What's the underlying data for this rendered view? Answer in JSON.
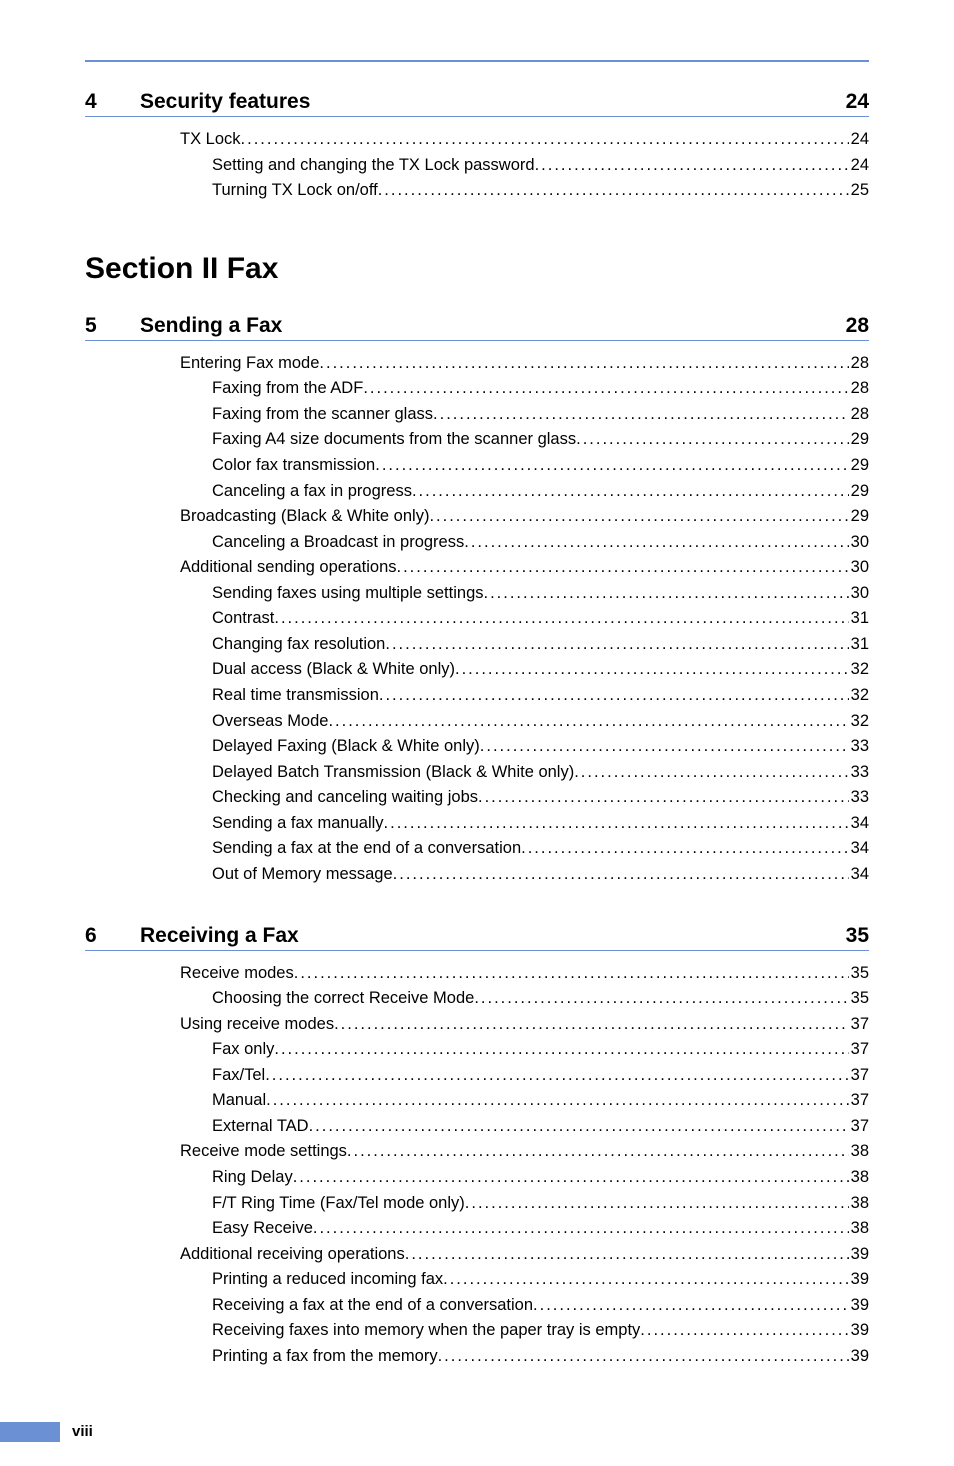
{
  "colors": {
    "rule": "#6b90d4",
    "text": "#000000",
    "background": "#ffffff",
    "footer_bar": "#6b90d4"
  },
  "typography": {
    "body_family": "Arial, Helvetica, sans-serif",
    "chapter_fontsize_pt": 16,
    "section_fontsize_pt": 22,
    "toc_fontsize_pt": 12
  },
  "chapters": {
    "ch4": {
      "number": "4",
      "title": "Security features",
      "page": "24"
    },
    "ch5": {
      "number": "5",
      "title": "Sending a Fax",
      "page": "28"
    },
    "ch6": {
      "number": "6",
      "title": "Receiving a Fax",
      "page": "35"
    }
  },
  "section2": {
    "title": "Section II   Fax"
  },
  "toc4": [
    {
      "label": "TX Lock",
      "page": "24",
      "level": 1
    },
    {
      "label": "Setting and changing the TX Lock password",
      "page": "24",
      "level": 2
    },
    {
      "label": "Turning TX Lock on/off",
      "page": "25",
      "level": 2
    }
  ],
  "toc5": [
    {
      "label": "Entering Fax mode",
      "page": "28",
      "level": 1
    },
    {
      "label": "Faxing from the ADF",
      "page": "28",
      "level": 2
    },
    {
      "label": "Faxing from the scanner glass",
      "page": "28",
      "level": 2
    },
    {
      "label": "Faxing A4 size documents from the scanner glass",
      "page": "29",
      "level": 2
    },
    {
      "label": "Color fax transmission",
      "page": "29",
      "level": 2
    },
    {
      "label": "Canceling a fax in progress",
      "page": "29",
      "level": 2
    },
    {
      "label": "Broadcasting (Black & White only)",
      "page": "29",
      "level": 1
    },
    {
      "label": "Canceling a Broadcast in progress",
      "page": "30",
      "level": 2
    },
    {
      "label": "Additional sending operations",
      "page": "30",
      "level": 1
    },
    {
      "label": "Sending faxes using multiple settings",
      "page": "30",
      "level": 2
    },
    {
      "label": "Contrast",
      "page": "31",
      "level": 2
    },
    {
      "label": "Changing fax resolution",
      "page": "31",
      "level": 2
    },
    {
      "label": "Dual access (Black & White only)",
      "page": "32",
      "level": 2
    },
    {
      "label": "Real time transmission",
      "page": "32",
      "level": 2
    },
    {
      "label": "Overseas Mode",
      "page": "32",
      "level": 2
    },
    {
      "label": "Delayed Faxing (Black & White only)",
      "page": "33",
      "level": 2
    },
    {
      "label": "Delayed Batch Transmission (Black & White only)",
      "page": "33",
      "level": 2
    },
    {
      "label": "Checking and canceling waiting jobs",
      "page": "33",
      "level": 2
    },
    {
      "label": "Sending a fax manually",
      "page": "34",
      "level": 2
    },
    {
      "label": "Sending a fax at the end of a conversation",
      "page": "34",
      "level": 2
    },
    {
      "label": "Out of Memory message",
      "page": "34",
      "level": 2
    }
  ],
  "toc6": [
    {
      "label": "Receive modes",
      "page": "35",
      "level": 1
    },
    {
      "label": "Choosing the correct Receive Mode",
      "page": "35",
      "level": 2
    },
    {
      "label": "Using receive modes",
      "page": "37",
      "level": 1
    },
    {
      "label": "Fax only",
      "page": "37",
      "level": 2
    },
    {
      "label": "Fax/Tel",
      "page": "37",
      "level": 2
    },
    {
      "label": "Manual",
      "page": "37",
      "level": 2
    },
    {
      "label": "External TAD",
      "page": "37",
      "level": 2
    },
    {
      "label": "Receive mode settings",
      "page": "38",
      "level": 1
    },
    {
      "label": "Ring Delay",
      "page": "38",
      "level": 2
    },
    {
      "label": "F/T Ring Time (Fax/Tel mode only)",
      "page": "38",
      "level": 2
    },
    {
      "label": "Easy Receive",
      "page": "38",
      "level": 2
    },
    {
      "label": "Additional receiving operations",
      "page": "39",
      "level": 1
    },
    {
      "label": "Printing a reduced incoming fax",
      "page": "39",
      "level": 2
    },
    {
      "label": "Receiving a fax at the end of a conversation",
      "page": "39",
      "level": 2
    },
    {
      "label": "Receiving faxes into memory when the paper tray is empty",
      "page": "39",
      "level": 2
    },
    {
      "label": "Printing a fax from the memory",
      "page": "39",
      "level": 2
    }
  ],
  "footer": {
    "page_number": "viii"
  }
}
